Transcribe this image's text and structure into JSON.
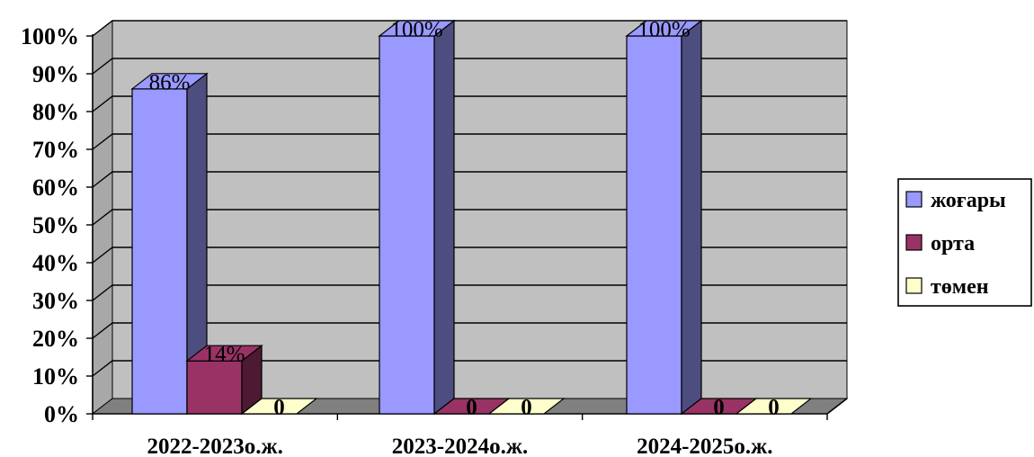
{
  "chart_data": {
    "type": "bar",
    "style": "3d-clustered-column",
    "categories": [
      "2022-2023о.ж.",
      "2023-2024о.ж.",
      "2024-2025о.ж."
    ],
    "series": [
      {
        "name": "жоғары",
        "values": [
          86,
          100,
          100
        ],
        "labels": [
          "86%",
          "100%",
          "100%"
        ],
        "color": "#9999ff",
        "side_color": "#4d4d80"
      },
      {
        "name": "орта",
        "values": [
          14,
          0,
          0
        ],
        "labels": [
          "14%",
          "0",
          "0"
        ],
        "color": "#993366",
        "side_color": "#4d1a33"
      },
      {
        "name": "төмен",
        "values": [
          0,
          0,
          0
        ],
        "labels": [
          "0",
          "0",
          "0"
        ],
        "color": "#ffffcc",
        "side_color": "#808066"
      }
    ],
    "ylim": [
      0,
      100
    ],
    "yticks": [
      0,
      10,
      20,
      30,
      40,
      50,
      60,
      70,
      80,
      90,
      100
    ],
    "ytick_format": "{v}%",
    "grid": true,
    "legend_position": "right",
    "plot_background": "#c0c0c0",
    "floor_color": "#808080",
    "gridline_color": "#000000"
  }
}
